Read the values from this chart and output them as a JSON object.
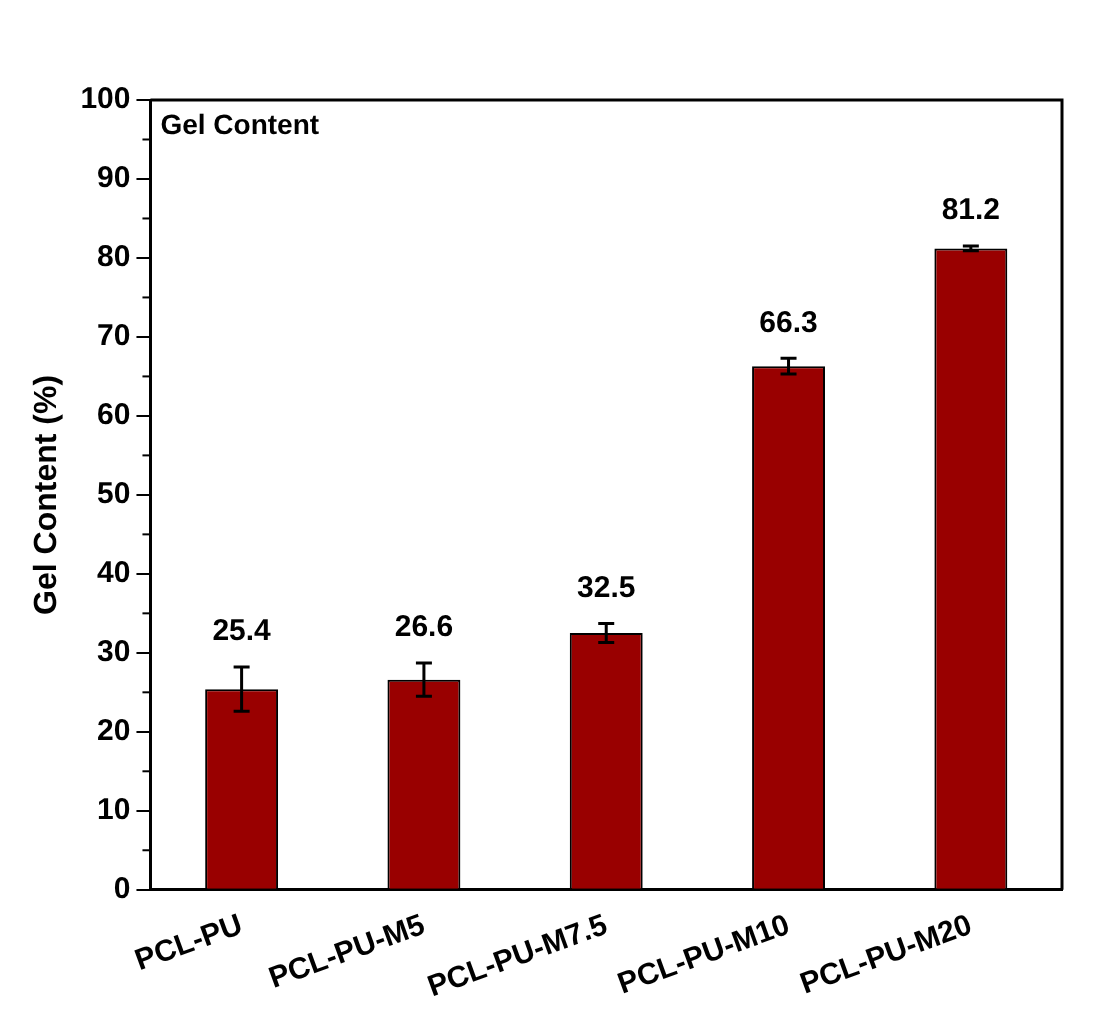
{
  "chart_data": {
    "type": "bar",
    "title": "Gel Content",
    "ylabel": "Gel Content (%)",
    "categories": [
      "PCL-PU",
      "PCL-PU-M5",
      "PCL-PU-M7.5",
      "PCL-PU-M10",
      "PCL-PU-M20"
    ],
    "values": [
      25.4,
      26.6,
      32.5,
      66.3,
      81.2
    ],
    "errors": [
      2.8,
      2.1,
      1.2,
      1.0,
      0.3
    ],
    "color": "#990000",
    "data_labels": true,
    "ylim": [
      0,
      100
    ],
    "yticks": [
      0,
      10,
      20,
      30,
      40,
      50,
      60,
      70,
      80,
      90,
      100
    ],
    "grid": false,
    "legend": false
  }
}
